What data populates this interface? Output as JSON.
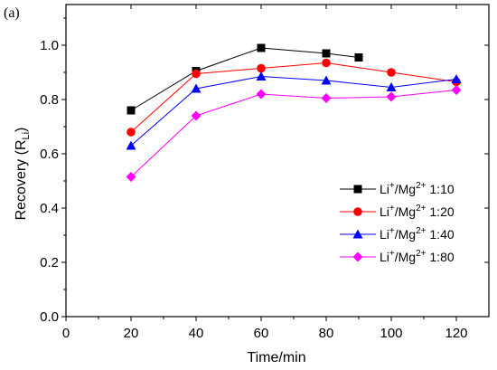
{
  "panel_label": "(a)",
  "chart_data": {
    "type": "line",
    "xlabel": "Time/min",
    "ylabel": "Recovery (R",
    "ylabel_sub": "Li",
    "ylabel_end": ")",
    "xlim": [
      0,
      130
    ],
    "ylim": [
      0.0,
      1.15
    ],
    "xticks": [
      0,
      20,
      40,
      60,
      80,
      100,
      120
    ],
    "yticks": [
      0.0,
      0.2,
      0.4,
      0.6,
      0.8,
      1.0
    ],
    "ytick_labels": [
      "0.0",
      "0.2",
      "0.4",
      "0.6",
      "0.8",
      "1.0"
    ],
    "legend_position": "middle-right",
    "series": [
      {
        "name": "1:10",
        "color": "#000000",
        "marker": "square",
        "x": [
          20,
          40,
          60,
          80,
          90
        ],
        "y": [
          0.76,
          0.905,
          0.99,
          0.97,
          0.955
        ]
      },
      {
        "name": "1:20",
        "color": "#ff0000",
        "marker": "circle",
        "x": [
          20,
          40,
          60,
          80,
          100,
          120
        ],
        "y": [
          0.68,
          0.895,
          0.915,
          0.935,
          0.9,
          0.865
        ]
      },
      {
        "name": "1:40",
        "color": "#0000ff",
        "marker": "triangle",
        "x": [
          20,
          40,
          60,
          80,
          100,
          120
        ],
        "y": [
          0.63,
          0.84,
          0.885,
          0.87,
          0.845,
          0.875
        ]
      },
      {
        "name": "1:80",
        "color": "#ff00ff",
        "marker": "diamond",
        "x": [
          20,
          40,
          60,
          80,
          100,
          120
        ],
        "y": [
          0.515,
          0.74,
          0.82,
          0.805,
          0.81,
          0.835
        ]
      }
    ],
    "legend_prefix": {
      "li": "Li",
      "li_sup": "+",
      "mg": "/Mg",
      "mg_sup": "2+"
    }
  }
}
